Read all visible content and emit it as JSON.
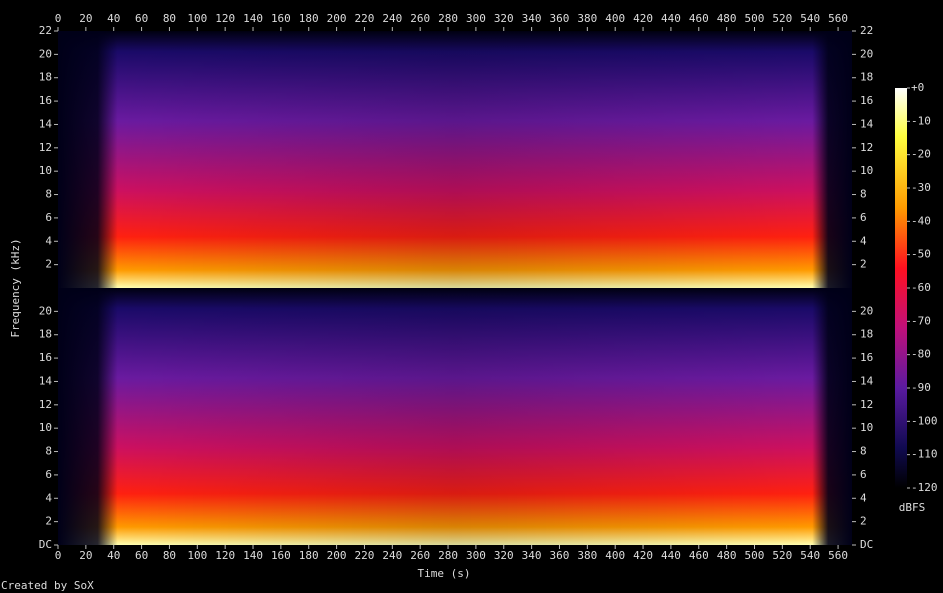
{
  "chart_data": {
    "type": "spectrogram",
    "xlabel": "Time (s)",
    "ylabel": "Frequency (kHz)",
    "xlim": [
      0,
      570
    ],
    "xticks": [
      0,
      20,
      40,
      60,
      80,
      100,
      120,
      140,
      160,
      180,
      200,
      220,
      240,
      260,
      280,
      300,
      320,
      340,
      360,
      380,
      400,
      420,
      440,
      460,
      480,
      500,
      520,
      540,
      560
    ],
    "channels": [
      {
        "ylim": [
          0,
          22
        ],
        "yticks": [
          2,
          4,
          6,
          8,
          10,
          12,
          14,
          16,
          18,
          20,
          22
        ]
      },
      {
        "ylim": [
          0,
          22
        ],
        "yticks": [
          {
            "value": 0,
            "label": "DC"
          },
          2,
          4,
          6,
          8,
          10,
          12,
          14,
          16,
          18,
          20
        ]
      }
    ],
    "zlim": [
      -120,
      0
    ],
    "zticks": [
      {
        "value": 0,
        "label": "+0"
      },
      -10,
      -20,
      -30,
      -40,
      -50,
      -60,
      -70,
      -80,
      -90,
      -100,
      -110,
      -120
    ],
    "zlabel": "dBFS",
    "credit": "Created by SoX"
  }
}
